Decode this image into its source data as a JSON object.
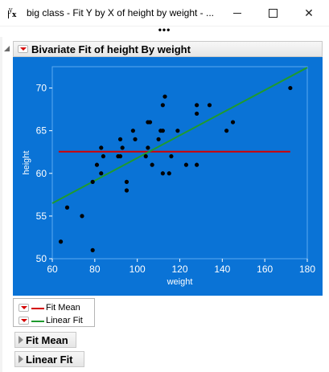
{
  "window": {
    "title": "big class - Fit Y by X of height by weight - ...",
    "icon": "jmp-yx-icon",
    "minimize": "minimize-icon",
    "maximize": "maximize-icon",
    "close": "✕",
    "overflow": "•••"
  },
  "report": {
    "title": "Bivariate Fit of height By weight",
    "legend": [
      {
        "label": "Fit Mean",
        "color": "#d40000"
      },
      {
        "label": "Linear Fit",
        "color": "#1f9a2e"
      }
    ],
    "sections": [
      {
        "label": "Fit Mean"
      },
      {
        "label": "Linear Fit"
      }
    ]
  },
  "chart_data": {
    "type": "scatter",
    "xlabel": "weight",
    "ylabel": "height",
    "xlim": [
      60,
      180
    ],
    "ylim": [
      50,
      72.5
    ],
    "xticks": [
      60,
      80,
      100,
      120,
      140,
      160,
      180
    ],
    "yticks": [
      50,
      55,
      60,
      65,
      70
    ],
    "background": "#0a73d6",
    "points": [
      [
        64,
        52
      ],
      [
        67,
        56
      ],
      [
        74,
        55
      ],
      [
        79,
        51
      ],
      [
        79,
        59
      ],
      [
        81,
        61
      ],
      [
        83,
        63
      ],
      [
        83,
        60
      ],
      [
        84,
        62
      ],
      [
        91,
        62
      ],
      [
        92,
        64
      ],
      [
        92,
        62
      ],
      [
        93,
        63
      ],
      [
        95,
        58
      ],
      [
        95,
        59
      ],
      [
        98,
        65
      ],
      [
        99,
        64
      ],
      [
        104,
        62
      ],
      [
        105,
        63
      ],
      [
        105,
        66
      ],
      [
        106,
        66
      ],
      [
        107,
        61
      ],
      [
        110,
        64
      ],
      [
        111,
        65
      ],
      [
        112,
        65
      ],
      [
        112,
        68
      ],
      [
        112,
        60
      ],
      [
        113,
        69
      ],
      [
        115,
        60
      ],
      [
        116,
        62
      ],
      [
        119,
        65
      ],
      [
        123,
        61
      ],
      [
        128,
        67
      ],
      [
        128,
        68
      ],
      [
        128,
        61
      ],
      [
        134,
        68
      ],
      [
        142,
        65
      ],
      [
        145,
        66
      ],
      [
        172,
        70
      ]
    ],
    "fit_mean": {
      "name": "Fit Mean",
      "y": 62.55,
      "x": [
        63,
        172
      ],
      "color": "#d40000"
    },
    "linear_fit": {
      "name": "Linear Fit",
      "x": [
        60,
        180
      ],
      "y": [
        56.5,
        72.4
      ],
      "color": "#1f9a2e"
    }
  }
}
